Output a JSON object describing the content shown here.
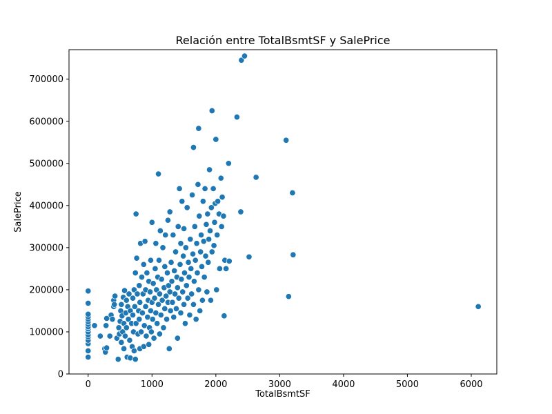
{
  "chart_data": {
    "type": "scatter",
    "title": "Relación entre TotalBsmtSF y SalePrice",
    "xlabel": "TotalBsmtSF",
    "ylabel": "SalePrice",
    "xlim": [
      -300,
      6400
    ],
    "ylim": [
      0,
      770000
    ],
    "xticks": [
      0,
      1000,
      2000,
      3000,
      4000,
      5000,
      6000
    ],
    "yticks": [
      0,
      100000,
      200000,
      300000,
      400000,
      500000,
      600000,
      700000
    ],
    "xtick_labels": [
      "0",
      "1000",
      "2000",
      "3000",
      "4000",
      "5000",
      "6000"
    ],
    "ytick_labels": [
      "0",
      "100000",
      "200000",
      "300000",
      "400000",
      "500000",
      "600000",
      "700000"
    ],
    "grid": false,
    "point_color": "#1f77b4",
    "points": [
      [
        0,
        40000
      ],
      [
        0,
        55000
      ],
      [
        0,
        72000
      ],
      [
        0,
        80000
      ],
      [
        0,
        88000
      ],
      [
        0,
        93000
      ],
      [
        0,
        100000
      ],
      [
        0,
        107000
      ],
      [
        0,
        112000
      ],
      [
        0,
        118000
      ],
      [
        0,
        124000
      ],
      [
        0,
        130000
      ],
      [
        0,
        136000
      ],
      [
        0,
        142000
      ],
      [
        0,
        168000
      ],
      [
        0,
        197000
      ],
      [
        100,
        115000
      ],
      [
        190,
        90000
      ],
      [
        260,
        60000
      ],
      [
        270,
        52000
      ],
      [
        290,
        62000
      ],
      [
        280,
        115000
      ],
      [
        290,
        132000
      ],
      [
        340,
        90000
      ],
      [
        360,
        140000
      ],
      [
        380,
        130000
      ],
      [
        400,
        160000
      ],
      [
        400,
        175000
      ],
      [
        410,
        165000
      ],
      [
        420,
        185000
      ],
      [
        450,
        85000
      ],
      [
        470,
        35000
      ],
      [
        480,
        110000
      ],
      [
        490,
        95000
      ],
      [
        500,
        125000
      ],
      [
        510,
        150000
      ],
      [
        520,
        75000
      ],
      [
        520,
        165000
      ],
      [
        530,
        138000
      ],
      [
        540,
        100000
      ],
      [
        550,
        182000
      ],
      [
        560,
        120000
      ],
      [
        560,
        60000
      ],
      [
        570,
        198000
      ],
      [
        580,
        90000
      ],
      [
        590,
        145000
      ],
      [
        600,
        110000
      ],
      [
        600,
        175000
      ],
      [
        610,
        40000
      ],
      [
        620,
        160000
      ],
      [
        630,
        130000
      ],
      [
        640,
        190000
      ],
      [
        650,
        80000
      ],
      [
        660,
        150000
      ],
      [
        660,
        38000
      ],
      [
        680,
        120000
      ],
      [
        690,
        65000
      ],
      [
        700,
        180000
      ],
      [
        700,
        140000
      ],
      [
        710,
        100000
      ],
      [
        720,
        55000
      ],
      [
        720,
        200000
      ],
      [
        730,
        160000
      ],
      [
        740,
        35000
      ],
      [
        740,
        240000
      ],
      [
        750,
        120000
      ],
      [
        750,
        380000
      ],
      [
        760,
        275000
      ],
      [
        770,
        190000
      ],
      [
        780,
        95000
      ],
      [
        790,
        150000
      ],
      [
        800,
        130000
      ],
      [
        800,
        210000
      ],
      [
        810,
        60000
      ],
      [
        810,
        170000
      ],
      [
        820,
        310000
      ],
      [
        830,
        100000
      ],
      [
        840,
        230000
      ],
      [
        850,
        145000
      ],
      [
        860,
        190000
      ],
      [
        870,
        65000
      ],
      [
        870,
        260000
      ],
      [
        880,
        115000
      ],
      [
        890,
        315000
      ],
      [
        900,
        160000
      ],
      [
        900,
        200000
      ],
      [
        910,
        90000
      ],
      [
        920,
        240000
      ],
      [
        930,
        135000
      ],
      [
        940,
        175000
      ],
      [
        950,
        70000
      ],
      [
        950,
        220000
      ],
      [
        960,
        110000
      ],
      [
        970,
        195000
      ],
      [
        980,
        150000
      ],
      [
        980,
        270000
      ],
      [
        990,
        100000
      ],
      [
        1000,
        170000
      ],
      [
        1000,
        360000
      ],
      [
        1010,
        130000
      ],
      [
        1020,
        215000
      ],
      [
        1030,
        85000
      ],
      [
        1040,
        180000
      ],
      [
        1050,
        250000
      ],
      [
        1060,
        145000
      ],
      [
        1060,
        310000
      ],
      [
        1070,
        200000
      ],
      [
        1080,
        120000
      ],
      [
        1090,
        230000
      ],
      [
        1100,
        165000
      ],
      [
        1100,
        475000
      ],
      [
        1110,
        270000
      ],
      [
        1120,
        95000
      ],
      [
        1120,
        190000
      ],
      [
        1130,
        340000
      ],
      [
        1140,
        140000
      ],
      [
        1150,
        225000
      ],
      [
        1160,
        175000
      ],
      [
        1170,
        300000
      ],
      [
        1180,
        110000
      ],
      [
        1190,
        205000
      ],
      [
        1200,
        155000
      ],
      [
        1200,
        255000
      ],
      [
        1210,
        330000
      ],
      [
        1220,
        185000
      ],
      [
        1230,
        130000
      ],
      [
        1240,
        240000
      ],
      [
        1250,
        170000
      ],
      [
        1250,
        365000
      ],
      [
        1260,
        210000
      ],
      [
        1270,
        60000
      ],
      [
        1280,
        195000
      ],
      [
        1280,
        385000
      ],
      [
        1290,
        150000
      ],
      [
        1300,
        265000
      ],
      [
        1310,
        220000
      ],
      [
        1320,
        170000
      ],
      [
        1330,
        330000
      ],
      [
        1340,
        135000
      ],
      [
        1350,
        245000
      ],
      [
        1360,
        190000
      ],
      [
        1370,
        290000
      ],
      [
        1380,
        155000
      ],
      [
        1390,
        230000
      ],
      [
        1400,
        85000
      ],
      [
        1400,
        205000
      ],
      [
        1410,
        350000
      ],
      [
        1420,
        180000
      ],
      [
        1430,
        440000
      ],
      [
        1440,
        260000
      ],
      [
        1450,
        145000
      ],
      [
        1450,
        310000
      ],
      [
        1460,
        225000
      ],
      [
        1470,
        410000
      ],
      [
        1480,
        195000
      ],
      [
        1490,
        280000
      ],
      [
        1500,
        165000
      ],
      [
        1500,
        345000
      ],
      [
        1510,
        240000
      ],
      [
        1520,
        120000
      ],
      [
        1530,
        300000
      ],
      [
        1540,
        210000
      ],
      [
        1550,
        395000
      ],
      [
        1560,
        180000
      ],
      [
        1570,
        265000
      ],
      [
        1580,
        230000
      ],
      [
        1590,
        140000
      ],
      [
        1600,
        320000
      ],
      [
        1610,
        250000
      ],
      [
        1620,
        190000
      ],
      [
        1630,
        425000
      ],
      [
        1640,
        285000
      ],
      [
        1650,
        165000
      ],
      [
        1650,
        538000
      ],
      [
        1660,
        220000
      ],
      [
        1670,
        350000
      ],
      [
        1680,
        270000
      ],
      [
        1690,
        130000
      ],
      [
        1700,
        310000
      ],
      [
        1710,
        240000
      ],
      [
        1720,
        450000
      ],
      [
        1730,
        200000
      ],
      [
        1730,
        583000
      ],
      [
        1740,
        375000
      ],
      [
        1750,
        150000
      ],
      [
        1760,
        290000
      ],
      [
        1770,
        330000
      ],
      [
        1780,
        255000
      ],
      [
        1790,
        175000
      ],
      [
        1800,
        410000
      ],
      [
        1810,
        315000
      ],
      [
        1820,
        230000
      ],
      [
        1830,
        440000
      ],
      [
        1840,
        280000
      ],
      [
        1850,
        355000
      ],
      [
        1860,
        195000
      ],
      [
        1870,
        380000
      ],
      [
        1880,
        265000
      ],
      [
        1890,
        320000
      ],
      [
        1900,
        485000
      ],
      [
        1910,
        340000
      ],
      [
        1920,
        175000
      ],
      [
        1930,
        395000
      ],
      [
        1940,
        290000
      ],
      [
        1940,
        625000
      ],
      [
        1960,
        440000
      ],
      [
        1970,
        305000
      ],
      [
        1980,
        360000
      ],
      [
        1990,
        405000
      ],
      [
        2000,
        557000
      ],
      [
        2010,
        200000
      ],
      [
        2020,
        330000
      ],
      [
        2030,
        410000
      ],
      [
        2050,
        380000
      ],
      [
        2060,
        250000
      ],
      [
        2080,
        465000
      ],
      [
        2090,
        350000
      ],
      [
        2100,
        420000
      ],
      [
        2120,
        375000
      ],
      [
        2130,
        138000
      ],
      [
        2140,
        270000
      ],
      [
        2160,
        250000
      ],
      [
        2200,
        500000
      ],
      [
        2210,
        268000
      ],
      [
        2330,
        610000
      ],
      [
        2390,
        385000
      ],
      [
        2400,
        745000
      ],
      [
        2450,
        755000
      ],
      [
        2520,
        278000
      ],
      [
        2630,
        467000
      ],
      [
        3100,
        555000
      ],
      [
        3140,
        184000
      ],
      [
        3200,
        430000
      ],
      [
        3210,
        283000
      ],
      [
        6110,
        160000
      ]
    ]
  }
}
